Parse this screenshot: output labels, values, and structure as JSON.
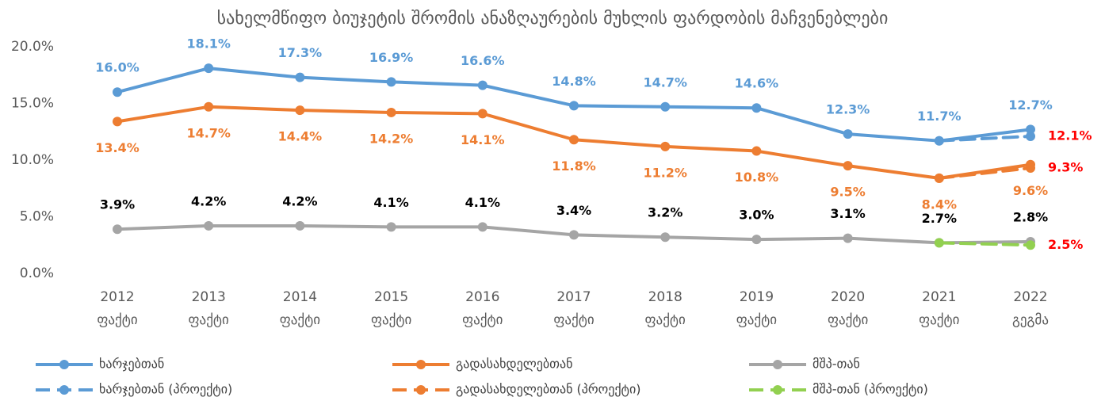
{
  "chart_data": {
    "type": "line",
    "title": "სახელმწიფო ბიუჯეტის შრომის ანაზღაურების მუხლის ფარდობის მაჩვენებლები",
    "categories": [
      [
        "2012",
        "ფაქტი"
      ],
      [
        "2013",
        "ფაქტი"
      ],
      [
        "2014",
        "ფაქტი"
      ],
      [
        "2015",
        "ფაქტი"
      ],
      [
        "2016",
        "ფაქტი"
      ],
      [
        "2017",
        "ფაქტი"
      ],
      [
        "2018",
        "ფაქტი"
      ],
      [
        "2019",
        "ფაქტი"
      ],
      [
        "2020",
        "ფაქტი"
      ],
      [
        "2021",
        "ფაქტი"
      ],
      [
        "2022",
        "გეგმა"
      ]
    ],
    "ylim": [
      0,
      20
    ],
    "yticks": [
      {
        "value": 0,
        "label": "0.0%"
      },
      {
        "value": 5,
        "label": "5.0%"
      },
      {
        "value": 10,
        "label": "10.0%"
      },
      {
        "value": 15,
        "label": "15.0%"
      },
      {
        "value": 20,
        "label": "20.0%"
      }
    ],
    "grid": false,
    "legend": "bottom",
    "series": [
      {
        "name": "ხარჯებთან",
        "color": "#5b9bd5",
        "dashed": false,
        "label_color": "#5b9bd5",
        "label_position": "above",
        "values": [
          16.0,
          18.1,
          17.3,
          16.9,
          16.6,
          14.8,
          14.7,
          14.6,
          12.3,
          11.7,
          12.7
        ],
        "value_labels": [
          "16.0%",
          "18.1%",
          "17.3%",
          "16.9%",
          "16.6%",
          "14.8%",
          "14.7%",
          "14.6%",
          "12.3%",
          "11.7%",
          "12.7%"
        ]
      },
      {
        "name": "გადასახდელებთან",
        "color": "#ed7d31",
        "dashed": false,
        "label_color": "#ed7d31",
        "label_position": "below",
        "values": [
          13.4,
          14.7,
          14.4,
          14.2,
          14.1,
          11.8,
          11.2,
          10.8,
          9.5,
          8.4,
          9.6
        ],
        "value_labels": [
          "13.4%",
          "14.7%",
          "14.4%",
          "14.2%",
          "14.1%",
          "11.8%",
          "11.2%",
          "10.8%",
          "9.5%",
          "8.4%",
          "9.6%"
        ]
      },
      {
        "name": "მშპ-თან",
        "color": "#a5a5a5",
        "dashed": false,
        "label_color": "#000000",
        "label_position": "above",
        "values": [
          3.9,
          4.2,
          4.2,
          4.1,
          4.1,
          3.4,
          3.2,
          3.0,
          3.1,
          2.7,
          2.8
        ],
        "value_labels": [
          "3.9%",
          "4.2%",
          "4.2%",
          "4.1%",
          "4.1%",
          "3.4%",
          "3.2%",
          "3.0%",
          "3.1%",
          "2.7%",
          "2.8%"
        ]
      },
      {
        "name": "ხარჯებთან (პროექტი)",
        "color": "#5b9bd5",
        "dashed": true,
        "label_color": "#ff0000",
        "label_position": "right",
        "values": [
          null,
          null,
          null,
          null,
          null,
          null,
          null,
          null,
          null,
          11.7,
          12.1
        ],
        "value_labels": [
          null,
          null,
          null,
          null,
          null,
          null,
          null,
          null,
          null,
          null,
          "12.1%"
        ]
      },
      {
        "name": "გადასახდელებთან (პროექტი)",
        "color": "#ed7d31",
        "dashed": true,
        "label_color": "#ff0000",
        "label_position": "right",
        "values": [
          null,
          null,
          null,
          null,
          null,
          null,
          null,
          null,
          null,
          8.4,
          9.3
        ],
        "value_labels": [
          null,
          null,
          null,
          null,
          null,
          null,
          null,
          null,
          null,
          null,
          "9.3%"
        ]
      },
      {
        "name": "მშპ-თან (პროექტი)",
        "color": "#92d050",
        "dashed": true,
        "label_color": "#ff0000",
        "label_position": "right",
        "values": [
          null,
          null,
          null,
          null,
          null,
          null,
          null,
          null,
          null,
          2.7,
          2.5
        ],
        "value_labels": [
          null,
          null,
          null,
          null,
          null,
          null,
          null,
          null,
          null,
          null,
          "2.5%"
        ]
      }
    ]
  }
}
